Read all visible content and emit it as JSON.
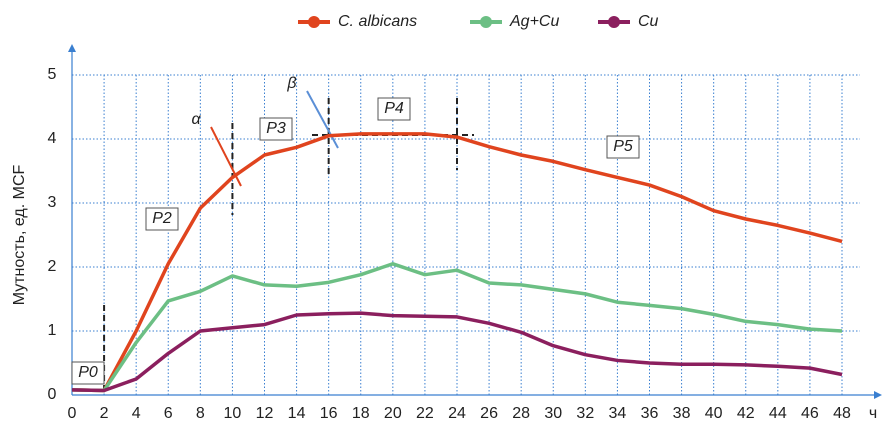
{
  "chart_data": {
    "type": "line",
    "y_label": "Мутность, ед. MCF",
    "x_unit": "ч",
    "x": [
      0,
      2,
      4,
      6,
      8,
      10,
      12,
      14,
      16,
      18,
      20,
      22,
      24,
      26,
      28,
      30,
      32,
      34,
      36,
      38,
      40,
      42,
      44,
      46,
      48
    ],
    "series": [
      {
        "name": "C. albicans",
        "color": "#e0441e",
        "values": [
          0.08,
          0.07,
          1.0,
          2.05,
          2.92,
          3.4,
          3.75,
          3.87,
          4.05,
          4.08,
          4.08,
          4.08,
          4.03,
          3.88,
          3.75,
          3.65,
          3.52,
          3.4,
          3.28,
          3.1,
          2.88,
          2.75,
          2.65,
          2.53,
          2.4
        ]
      },
      {
        "name": "Ag+Cu",
        "color": "#6cbf84",
        "values": [
          0.08,
          0.07,
          0.82,
          1.47,
          1.62,
          1.86,
          1.72,
          1.7,
          1.76,
          1.88,
          2.05,
          1.88,
          1.95,
          1.75,
          1.72,
          1.65,
          1.58,
          1.45,
          1.4,
          1.35,
          1.26,
          1.15,
          1.1,
          1.03,
          1.0
        ]
      },
      {
        "name": "Cu",
        "color": "#8b1f5e",
        "values": [
          0.08,
          0.07,
          0.25,
          0.65,
          1.0,
          1.05,
          1.1,
          1.25,
          1.27,
          1.28,
          1.24,
          1.23,
          1.22,
          1.12,
          0.98,
          0.77,
          0.63,
          0.54,
          0.5,
          0.48,
          0.48,
          0.47,
          0.45,
          0.42,
          0.32
        ]
      }
    ],
    "annotations": [
      "P0",
      "P2",
      "P3",
      "P4",
      "P5",
      "α",
      "β"
    ],
    "xlim": [
      0,
      48
    ],
    "ylim": [
      0,
      5
    ],
    "xticks": [
      0,
      2,
      4,
      6,
      8,
      10,
      12,
      14,
      16,
      18,
      20,
      22,
      24,
      26,
      28,
      30,
      32,
      34,
      36,
      38,
      40,
      42,
      44,
      46,
      48
    ],
    "yticks": [
      0,
      1,
      2,
      3,
      4,
      5
    ],
    "grid": true,
    "legend": "top"
  }
}
